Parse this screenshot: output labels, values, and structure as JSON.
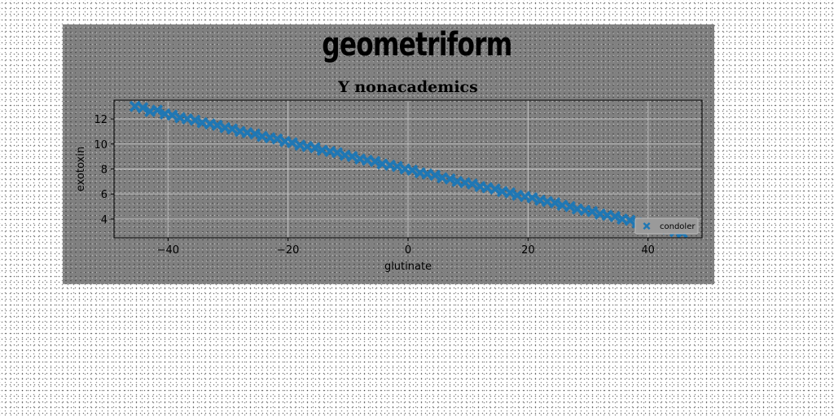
{
  "suptitle": "geometriform",
  "colors": {
    "figure_bg": "#808080",
    "series": "#1f77b4",
    "grid": "#c8c8c8"
  },
  "chart_data": {
    "type": "scatter",
    "title": "Y nonacademics",
    "xlabel": "glutinate",
    "ylabel": "exotoxin",
    "xlim": [
      -49,
      49
    ],
    "ylim": [
      2.5,
      13.5
    ],
    "xticks": [
      -40,
      -20,
      0,
      20,
      40
    ],
    "xtick_labels": [
      "−40",
      "−20",
      "0",
      "20",
      "40"
    ],
    "yticks": [
      4,
      6,
      8,
      10,
      12
    ],
    "yticks_labels": [
      "4",
      "6",
      "8",
      "10",
      "12"
    ],
    "grid": true,
    "legend_position": "lower-right",
    "marker": "X",
    "series": [
      {
        "name": "condoler",
        "x": [
          -45.5,
          -44.2,
          -43.0,
          -41.8,
          -40.5,
          -39.3,
          -38.0,
          -36.8,
          -35.5,
          -34.3,
          -33.0,
          -31.8,
          -30.5,
          -29.3,
          -28.0,
          -26.8,
          -25.5,
          -24.3,
          -23.0,
          -21.8,
          -20.5,
          -19.3,
          -18.0,
          -16.8,
          -15.5,
          -14.3,
          -13.0,
          -11.8,
          -10.5,
          -9.3,
          -8.0,
          -6.8,
          -5.5,
          -4.3,
          -3.0,
          -1.8,
          -0.5,
          0.7,
          2.0,
          3.2,
          4.5,
          5.7,
          7.0,
          8.2,
          9.5,
          10.7,
          12.0,
          13.2,
          14.5,
          15.7,
          17.0,
          18.2,
          19.5,
          20.7,
          22.0,
          23.2,
          24.5,
          25.7,
          27.0,
          28.2,
          29.5,
          30.7,
          32.0,
          33.2,
          34.5,
          35.7,
          37.0,
          38.2,
          39.5,
          40.7,
          42.0,
          43.2,
          44.5,
          45.7
        ],
        "y": [
          13.0,
          12.9,
          12.6,
          12.7,
          12.4,
          12.3,
          12.1,
          12.0,
          11.9,
          11.7,
          11.6,
          11.5,
          11.3,
          11.2,
          11.0,
          10.9,
          10.8,
          10.6,
          10.5,
          10.4,
          10.2,
          10.1,
          9.9,
          9.8,
          9.7,
          9.5,
          9.4,
          9.3,
          9.1,
          9.0,
          8.8,
          8.7,
          8.6,
          8.4,
          8.3,
          8.2,
          8.0,
          7.9,
          7.7,
          7.6,
          7.5,
          7.3,
          7.2,
          7.0,
          6.9,
          6.8,
          6.6,
          6.5,
          6.4,
          6.2,
          6.1,
          5.9,
          5.8,
          5.7,
          5.5,
          5.4,
          5.3,
          5.1,
          5.0,
          4.8,
          4.7,
          4.6,
          4.4,
          4.3,
          4.2,
          4.0,
          3.9,
          3.7,
          3.6,
          3.5,
          3.3,
          3.2,
          3.0,
          2.9
        ]
      }
    ]
  }
}
